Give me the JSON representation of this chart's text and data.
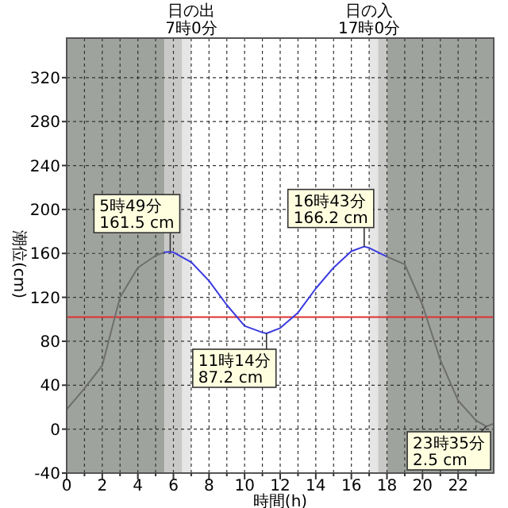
{
  "chart_data": {
    "type": "line",
    "xlabel": "時間(h)",
    "ylabel": "潮位(cm)",
    "xlim": [
      0,
      24
    ],
    "ylim": [
      -40,
      356
    ],
    "xticks": [
      0,
      {
        "value": 1,
        "label": null
      },
      2,
      {
        "value": 3,
        "label": null
      },
      4,
      {
        "value": 5,
        "label": null
      },
      6,
      {
        "value": 7,
        "label": null
      },
      8,
      {
        "value": 9,
        "label": null
      },
      10,
      {
        "value": 11,
        "label": null
      },
      12,
      {
        "value": 13,
        "label": null
      },
      14,
      {
        "value": 15,
        "label": null
      },
      16,
      {
        "value": 17,
        "label": null
      },
      18,
      {
        "value": 19,
        "label": null
      },
      20,
      {
        "value": 21,
        "label": null
      },
      22,
      {
        "value": 23,
        "label": null
      }
    ],
    "yticks": [
      -40,
      0,
      40,
      80,
      120,
      160,
      200,
      240,
      280,
      320
    ],
    "grid": true,
    "line_style": "solid",
    "marker": "none",
    "bands": [
      {
        "axis": "x",
        "from": 0,
        "to": 5.5,
        "color": "#9fa39d"
      },
      {
        "axis": "x",
        "from": 5.5,
        "to": 6.5,
        "color": "#c9cac8"
      },
      {
        "axis": "x",
        "from": 6.5,
        "to": 7,
        "color": "#e6e6e6"
      },
      {
        "axis": "x",
        "from": 17,
        "to": 17.5,
        "color": "#e6e6e6"
      },
      {
        "axis": "x",
        "from": 17.5,
        "to": 18,
        "color": "#c9cac8"
      },
      {
        "axis": "x",
        "from": 18,
        "to": 24,
        "color": "#9fa39d"
      }
    ],
    "ref_lines": [
      {
        "axis": "y",
        "value": 102,
        "color": "#e03030"
      }
    ],
    "series": [
      {
        "color": "#6e6e6e",
        "x": [
          0,
          1,
          2,
          3,
          4,
          5,
          5.5
        ],
        "values": [
          18,
          37,
          58,
          120,
          147,
          158,
          161
        ]
      },
      {
        "color": "#3a3ae0",
        "x": [
          5.5,
          5.82,
          6,
          7,
          8,
          9,
          10,
          11,
          11.23,
          12,
          13,
          14,
          15,
          16,
          16.72,
          17,
          18
        ],
        "values": [
          161,
          161.5,
          161,
          152,
          135,
          113,
          94,
          88,
          87.2,
          92,
          106,
          128,
          147,
          162,
          166.2,
          165,
          157
        ]
      },
      {
        "color": "#6e6e6e",
        "x": [
          18,
          19,
          20,
          21,
          22,
          23,
          23.58,
          24
        ],
        "values": [
          157,
          150,
          113,
          63,
          26,
          8,
          2.5,
          5
        ]
      }
    ],
    "annotations": [
      "日の出\n7時0分",
      "日の入\n17時0分",
      {
        "text": "5時49分\n161.5 cm",
        "x": 5.82,
        "y": 161.5
      },
      {
        "text": "11時14分\n87.2 cm",
        "x": 11.23,
        "y": 87.2
      },
      {
        "text": "16時43分\n166.2 cm",
        "x": 16.72,
        "y": 166.2
      },
      {
        "text": "23時35分\n2.5 cm",
        "x": 23.58,
        "y": 2.5
      }
    ]
  }
}
